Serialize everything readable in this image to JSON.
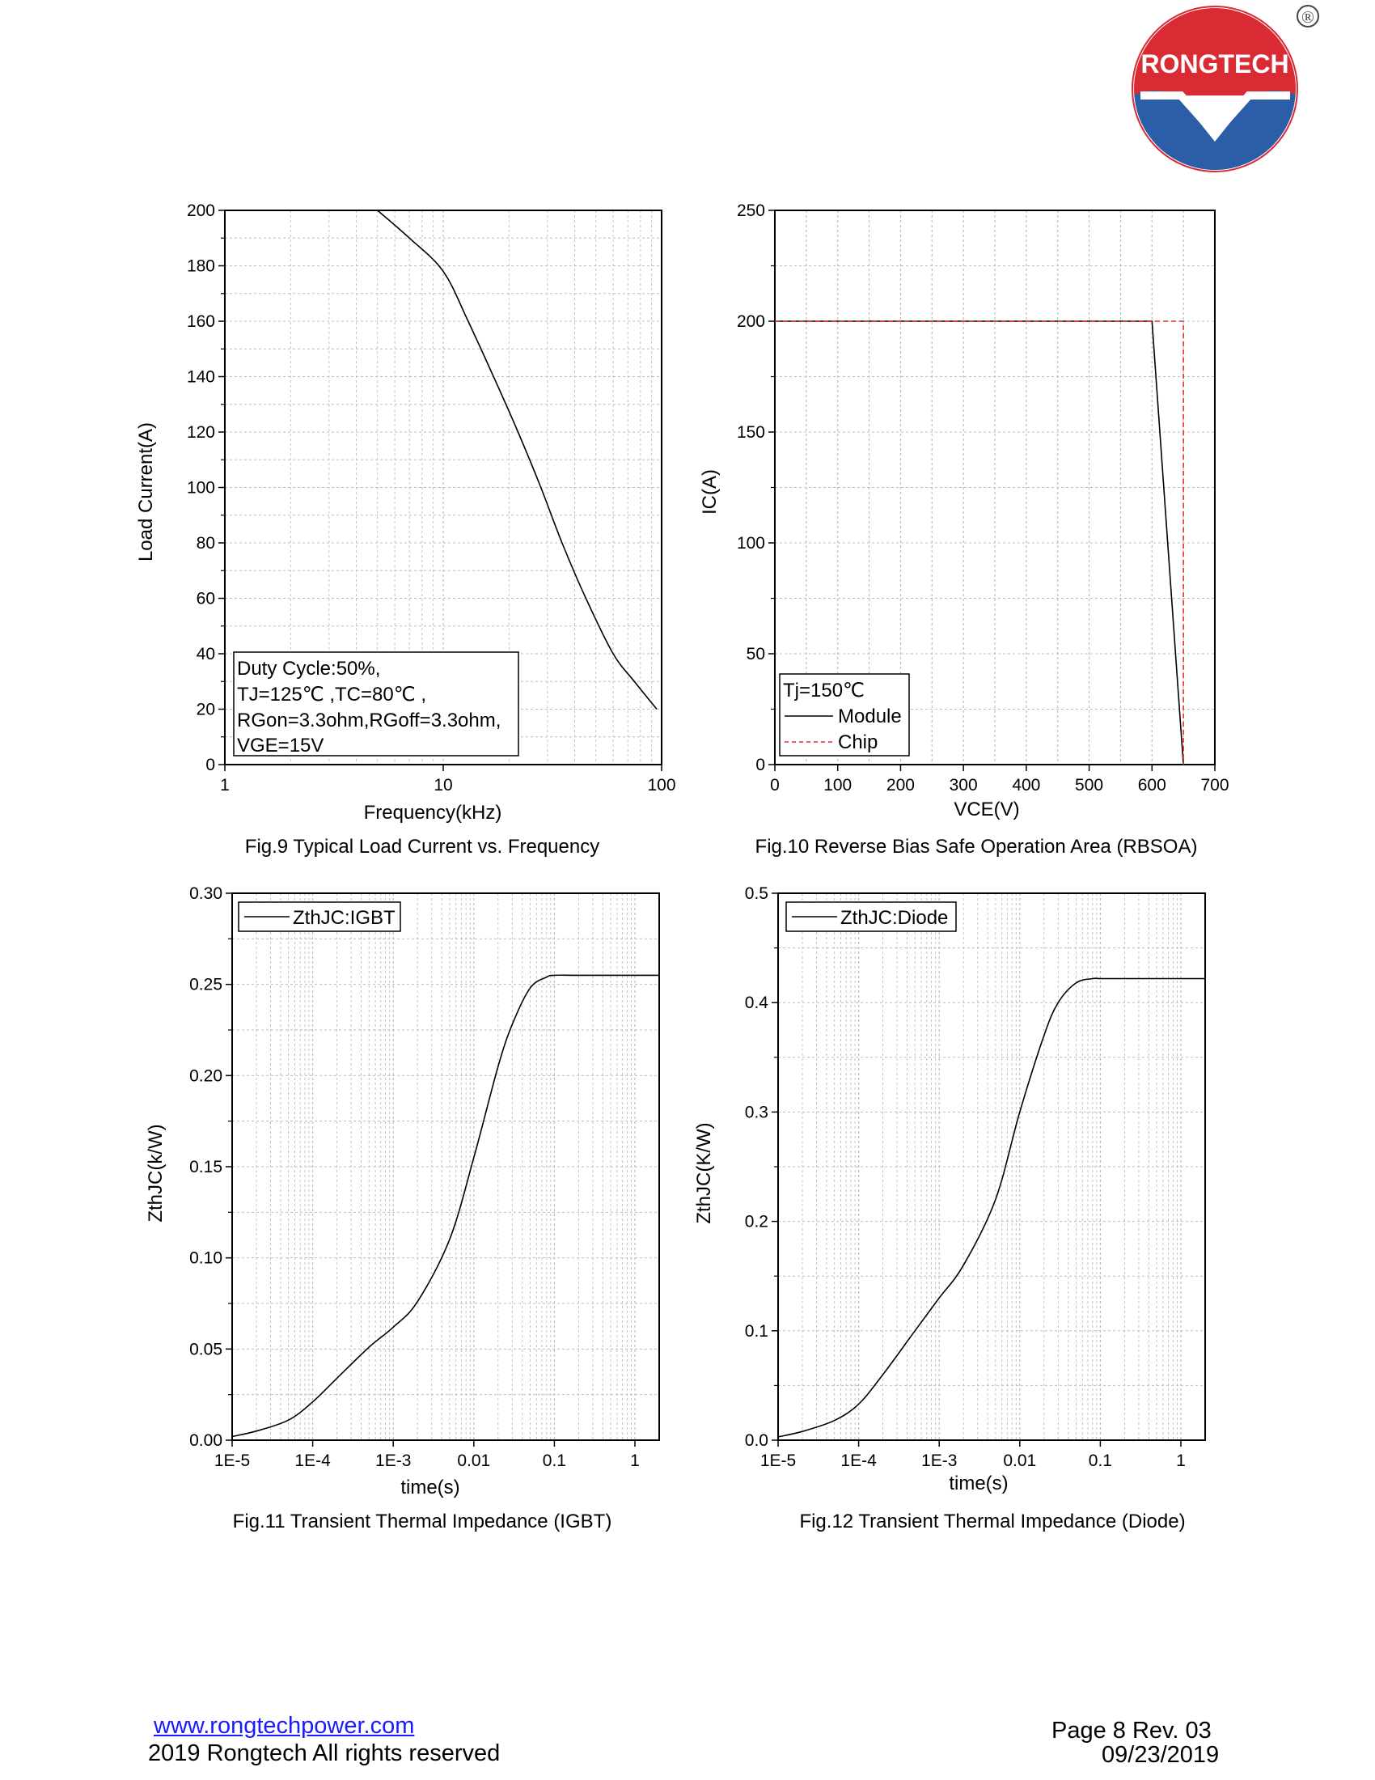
{
  "logo": {
    "text": "RONGTECH",
    "registered": "®"
  },
  "footer": {
    "website": "www.rongtechpower.com",
    "copyright": "2019 Rongtech All rights reserved",
    "page_info": "Page 8  Rev. 03",
    "date": "09/23/2019"
  },
  "colors": {
    "line": "#000000",
    "chip": "#e03030",
    "grid": "#bdbdbd",
    "logo_red": "#d92b33",
    "logo_blue": "#2c5ea8"
  },
  "chart_data": [
    {
      "id": "fig9",
      "type": "line",
      "caption": "Fig.9 Typical Load Current vs. Frequency",
      "xlabel": "Frequency(kHz)",
      "ylabel": "Load Current(A)",
      "xscale": "log",
      "xlim": [
        1,
        100
      ],
      "ylim": [
        0,
        200
      ],
      "xticks": [
        1,
        10,
        100
      ],
      "xtick_labels": [
        "1",
        "10",
        "100"
      ],
      "yticks": [
        0,
        20,
        40,
        60,
        80,
        100,
        120,
        140,
        160,
        180,
        200
      ],
      "ytick_labels": [
        "0",
        "20",
        "40",
        "60",
        "80",
        "100",
        "120",
        "140",
        "160",
        "180",
        "200"
      ],
      "grid": true,
      "series": [
        {
          "name": "Load Current",
          "style": "solid",
          "x": [
            5,
            7,
            10,
            13,
            17,
            22,
            28,
            35,
            45,
            60,
            75,
            95
          ],
          "y": [
            200,
            190,
            178,
            160,
            140,
            120,
            100,
            80,
            60,
            40,
            30,
            20
          ]
        }
      ],
      "legend": {
        "position": "bottom-left",
        "lines": [
          "Duty Cycle:50%,",
          "TJ=125℃ ,TC=80℃ ,",
          "RGon=3.3ohm,RGoff=3.3ohm,",
          "VGE=15V"
        ]
      }
    },
    {
      "id": "fig10",
      "type": "line",
      "caption": "Fig.10 Reverse Bias Safe Operation Area (RBSOA)",
      "xlabel": "VCE(V)",
      "ylabel": "IC(A)",
      "xscale": "linear",
      "xlim": [
        0,
        700
      ],
      "ylim": [
        0,
        250
      ],
      "xticks": [
        0,
        100,
        200,
        300,
        400,
        500,
        600,
        700
      ],
      "xtick_labels": [
        "0",
        "100",
        "200",
        "300",
        "400",
        "500",
        "600",
        "700"
      ],
      "yticks": [
        0,
        50,
        100,
        150,
        200,
        250
      ],
      "ytick_labels": [
        "0",
        "50",
        "100",
        "150",
        "200",
        "250"
      ],
      "grid": true,
      "series": [
        {
          "name": "Module",
          "style": "solid",
          "x": [
            0,
            600,
            650
          ],
          "y": [
            200,
            200,
            0
          ]
        },
        {
          "name": "Chip",
          "style": "dashed",
          "x": [
            0,
            650,
            650
          ],
          "y": [
            200,
            200,
            0
          ]
        }
      ],
      "legend": {
        "position": "bottom-left",
        "title": "Tj=150℃",
        "entries": [
          "Module",
          "Chip"
        ]
      }
    },
    {
      "id": "fig11",
      "type": "line",
      "caption": "Fig.11 Transient Thermal Impedance (IGBT)",
      "xlabel": "time(s)",
      "ylabel": "ZthJC(k/W)",
      "xscale": "log",
      "xlim": [
        1e-05,
        2
      ],
      "ylim": [
        0,
        0.3
      ],
      "xticks": [
        1e-05,
        0.0001,
        0.001,
        0.01,
        0.1,
        1
      ],
      "xtick_labels": [
        "1E-5",
        "1E-4",
        "1E-3",
        "0.01",
        "0.1",
        "1"
      ],
      "yticks": [
        0,
        0.05,
        0.1,
        0.15,
        0.2,
        0.25,
        0.3
      ],
      "ytick_labels": [
        "0.00",
        "0.05",
        "0.10",
        "0.15",
        "0.20",
        "0.25",
        "0.30"
      ],
      "grid": true,
      "series": [
        {
          "name": "ZthJC:IGBT",
          "style": "solid",
          "x": [
            1e-05,
            2e-05,
            5e-05,
            0.0001,
            0.0002,
            0.0005,
            0.001,
            0.002,
            0.005,
            0.01,
            0.02,
            0.03,
            0.05,
            0.08,
            0.1,
            0.2,
            1,
            2
          ],
          "y": [
            0.002,
            0.005,
            0.011,
            0.021,
            0.034,
            0.051,
            0.062,
            0.076,
            0.11,
            0.155,
            0.205,
            0.228,
            0.248,
            0.254,
            0.255,
            0.255,
            0.255,
            0.255
          ]
        }
      ],
      "legend": {
        "position": "top-left",
        "entries": [
          "ZthJC:IGBT"
        ]
      }
    },
    {
      "id": "fig12",
      "type": "line",
      "caption": "Fig.12 Transient Thermal Impedance (Diode)",
      "xlabel": "time(s)",
      "ylabel": "ZthJC(K/W)",
      "xscale": "log",
      "xlim": [
        1e-05,
        2
      ],
      "ylim": [
        0,
        0.5
      ],
      "xticks": [
        1e-05,
        0.0001,
        0.001,
        0.01,
        0.1,
        1
      ],
      "xtick_labels": [
        "1E-5",
        "1E-4",
        "1E-3",
        "0.01",
        "0.1",
        "1"
      ],
      "yticks": [
        0,
        0.1,
        0.2,
        0.3,
        0.4,
        0.5
      ],
      "ytick_labels": [
        "0.0",
        "0.1",
        "0.2",
        "0.3",
        "0.4",
        "0.5"
      ],
      "grid": true,
      "series": [
        {
          "name": "ZthJC:Diode",
          "style": "solid",
          "x": [
            1e-05,
            2e-05,
            5e-05,
            0.0001,
            0.0002,
            0.0005,
            0.001,
            0.002,
            0.005,
            0.01,
            0.02,
            0.03,
            0.05,
            0.08,
            0.1,
            0.2,
            1,
            2
          ],
          "y": [
            0.003,
            0.008,
            0.018,
            0.033,
            0.06,
            0.1,
            0.13,
            0.16,
            0.22,
            0.3,
            0.37,
            0.4,
            0.418,
            0.422,
            0.422,
            0.422,
            0.422,
            0.422
          ]
        }
      ],
      "legend": {
        "position": "top-left",
        "entries": [
          "ZthJC:Diode"
        ]
      }
    }
  ]
}
